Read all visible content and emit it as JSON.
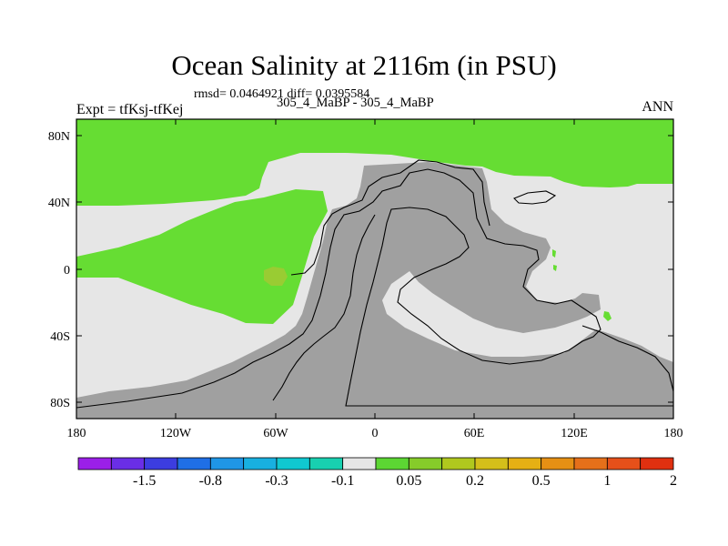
{
  "title": "Ocean Salinity at 2116m (in PSU)",
  "stats": "rmsd= 0.0464921 diff= 0.0395584",
  "experiment": "Expt = tfKsj-tfKej",
  "period": "305_4_MaBP - 305_4_MaBP",
  "season": "ANN",
  "colors": {
    "land": "#a0a0a0",
    "near_zero": "#e6e6e6",
    "positive": "#66dd33",
    "strong_positive": "#99cc33",
    "border": "#000000"
  },
  "map": {
    "lat_labels": [
      "80N",
      "40N",
      "0",
      "40S",
      "80S"
    ],
    "lon_labels": [
      "180",
      "120W",
      "60W",
      "0",
      "60E",
      "120E",
      "180"
    ]
  },
  "colorbar": {
    "colors": [
      "#9b1fe8",
      "#6a2ee6",
      "#3c3de0",
      "#1f6fe6",
      "#1f96e6",
      "#18b0e0",
      "#10c8d0",
      "#18d0b0",
      "#e6e6e6",
      "#5cd633",
      "#86cc2a",
      "#b0c81e",
      "#d4bf1a",
      "#e6b014",
      "#e69014",
      "#e6701a",
      "#e6501a",
      "#e03010"
    ],
    "labels": [
      "-1.5",
      "-0.8",
      "-0.3",
      "-0.1",
      "0.05",
      "0.2",
      "0.5",
      "1",
      "2"
    ]
  }
}
